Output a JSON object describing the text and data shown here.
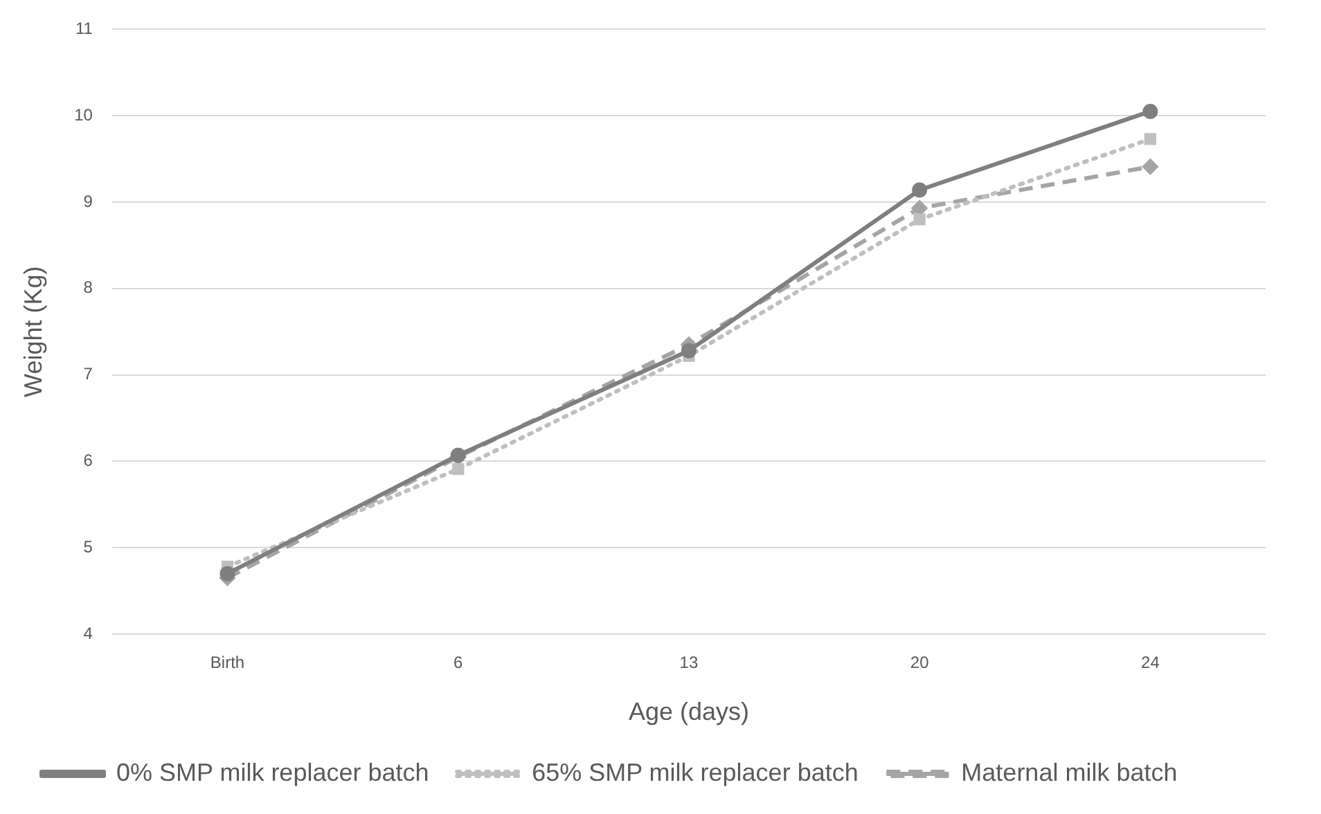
{
  "chart_data": {
    "type": "line",
    "xlabel": "Age (days)",
    "ylabel": "Weight (Kg)",
    "categories": [
      "Birth",
      "6",
      "13",
      "20",
      "24"
    ],
    "series": [
      {
        "name": "0% SMP milk replacer batch",
        "color": "#7f7f7f",
        "values": [
          4.7,
          6.07,
          7.28,
          9.14,
          10.05
        ],
        "marker": "circle",
        "line_style": "solid"
      },
      {
        "name": "65% SMP milk replacer batch",
        "color": "#bfbfbf",
        "values": [
          4.78,
          5.91,
          7.22,
          8.8,
          9.73
        ],
        "marker": "square",
        "line_style": "dotted"
      },
      {
        "name": "Maternal milk batch",
        "color": "#a5a5a5",
        "values": [
          4.65,
          6.05,
          7.35,
          8.93,
          9.41
        ],
        "marker": "diamond",
        "line_style": "dashed"
      }
    ],
    "ylim": [
      4,
      11
    ],
    "yticks": [
      4,
      5,
      6,
      7,
      8,
      9,
      10,
      11
    ],
    "grid": "y",
    "legend": "bottom"
  }
}
